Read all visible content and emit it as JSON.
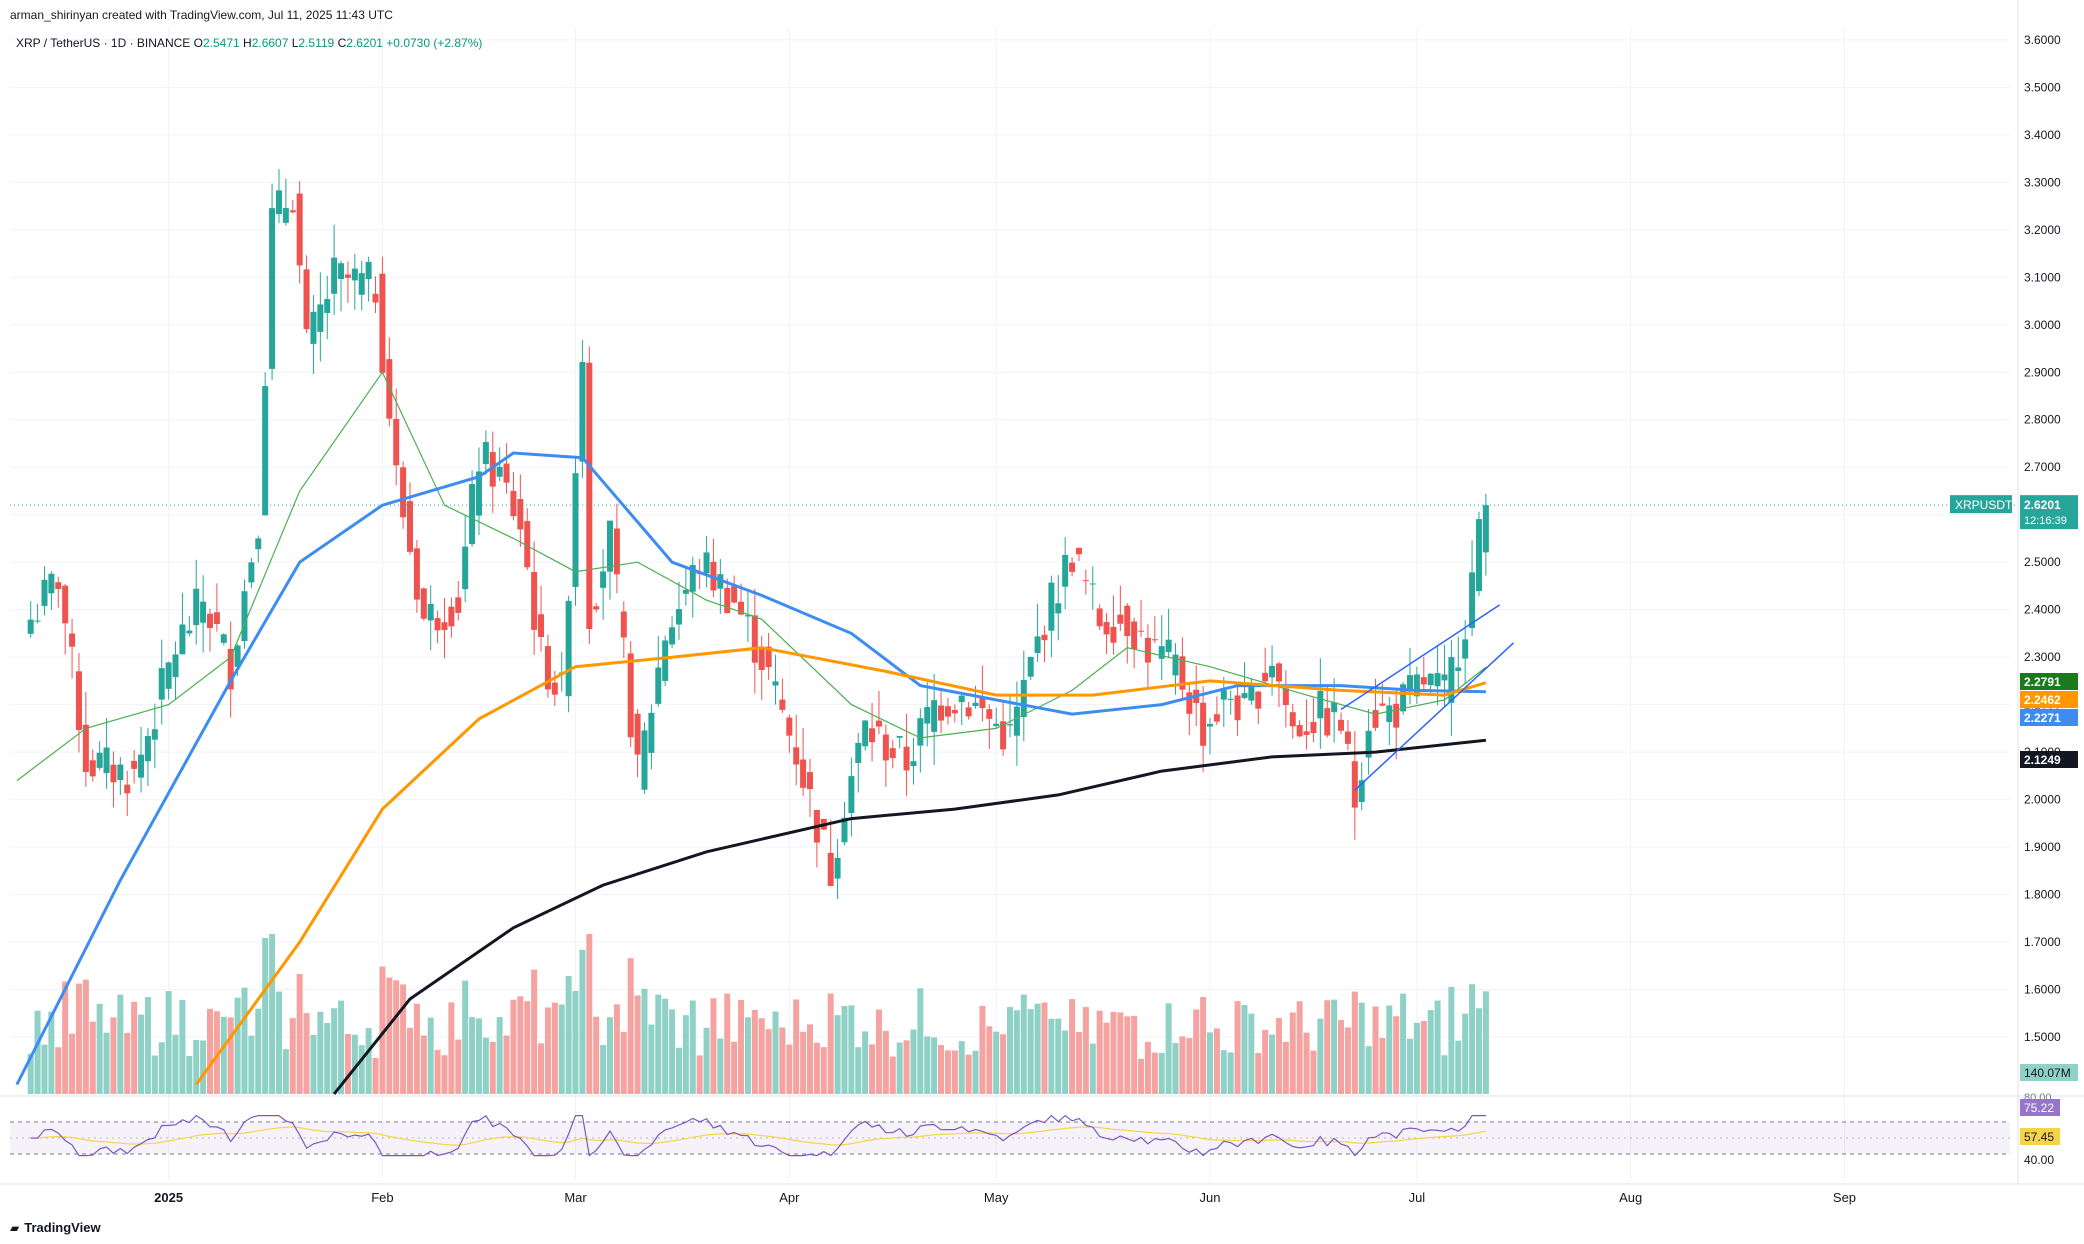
{
  "header": {
    "credit": "arman_shirinyan created with TradingView.com, Jul 11, 2025 11:43 UTC",
    "symbol": "XRP / TetherUS · 1D · BINANCE",
    "o_label": "O",
    "o": "2.5471",
    "h_label": "H",
    "h": "2.6607",
    "l_label": "L",
    "l": "2.5119",
    "c_label": "C",
    "c": "2.6201",
    "change": "+0.0730 (+2.87%)"
  },
  "footer": {
    "brand": "TradingView"
  },
  "colors": {
    "up": "#26a69a",
    "down": "#ef5350",
    "up_vol": "#8fd1c7",
    "down_vol": "#f5a3a1",
    "ma_green": "#4caf50",
    "ma_blue": "#3d8df0",
    "ma_orange": "#ff9800",
    "ma_black": "#131722",
    "rsi": "#7e57c2",
    "rsi_ma": "#f5d547",
    "channel": "#2962ff"
  },
  "chart_data": {
    "type": "candlestick",
    "price_axis": {
      "ticks": [
        "3.6000",
        "3.5000",
        "3.4000",
        "3.3000",
        "3.2000",
        "3.1000",
        "3.0000",
        "2.9000",
        "2.8000",
        "2.7000",
        "2.6000",
        "2.5000",
        "2.4000",
        "2.3000",
        "2.2000",
        "2.1000",
        "2.0000",
        "1.9000",
        "1.8000",
        "1.7000",
        "1.6000",
        "1.5000"
      ],
      "ylim": [
        1.38,
        3.625
      ]
    },
    "time_axis": [
      "2025",
      "Feb",
      "Mar",
      "Apr",
      "May",
      "Jun",
      "Jul",
      "Aug",
      "Sep"
    ],
    "price_labels": [
      {
        "text": "XRPUSDT",
        "value": "2.6201",
        "sub": "12:16:39",
        "y": 2.6201,
        "color": "#26a69a"
      },
      {
        "text": "",
        "value": "2.2791",
        "y": 2.2791,
        "color": "#1b7a1b"
      },
      {
        "text": "",
        "value": "2.2462",
        "y": 2.2462,
        "color": "#ff9800"
      },
      {
        "text": "",
        "value": "2.2271",
        "y": 2.2271,
        "color": "#3d8df0"
      },
      {
        "text": "",
        "value": "2.1249",
        "y": 2.1249,
        "color": "#131722"
      }
    ],
    "volume_label": "140.07M",
    "rsi_labels": [
      {
        "value": "75.22",
        "color": "#9575cd"
      },
      {
        "value": "57.45",
        "color": "#f5d547"
      }
    ],
    "rsi_axis": [
      "80.00",
      "40.00"
    ],
    "anchors": [
      {
        "date": "2024-12-12",
        "close": 2.38
      },
      {
        "date": "2024-12-16",
        "close": 2.47
      },
      {
        "date": "2024-12-20",
        "close": 2.08
      },
      {
        "date": "2024-12-27",
        "close": 2.05
      },
      {
        "date": "2025-01-02",
        "close": 2.32
      },
      {
        "date": "2025-01-06",
        "close": 2.42
      },
      {
        "date": "2025-01-10",
        "close": 2.28
      },
      {
        "date": "2025-01-14",
        "close": 2.6
      },
      {
        "date": "2025-01-16",
        "close": 3.22
      },
      {
        "date": "2025-01-19",
        "close": 3.28
      },
      {
        "date": "2025-01-21",
        "close": 2.95
      },
      {
        "date": "2025-01-25",
        "close": 3.1
      },
      {
        "date": "2025-01-31",
        "close": 3.08
      },
      {
        "date": "2025-02-03",
        "close": 2.68
      },
      {
        "date": "2025-02-07",
        "close": 2.38
      },
      {
        "date": "2025-02-12",
        "close": 2.42
      },
      {
        "date": "2025-02-15",
        "close": 2.72
      },
      {
        "date": "2025-02-18",
        "close": 2.68
      },
      {
        "date": "2025-02-21",
        "close": 2.58
      },
      {
        "date": "2025-02-24",
        "close": 2.3
      },
      {
        "date": "2025-02-27",
        "close": 2.22
      },
      {
        "date": "2025-03-02",
        "close": 2.95
      },
      {
        "date": "2025-03-03",
        "close": 2.4
      },
      {
        "date": "2025-03-06",
        "close": 2.55
      },
      {
        "date": "2025-03-10",
        "close": 2.05
      },
      {
        "date": "2025-03-14",
        "close": 2.35
      },
      {
        "date": "2025-03-19",
        "close": 2.5
      },
      {
        "date": "2025-03-24",
        "close": 2.42
      },
      {
        "date": "2025-03-28",
        "close": 2.3
      },
      {
        "date": "2025-04-02",
        "close": 2.1
      },
      {
        "date": "2025-04-07",
        "close": 1.85
      },
      {
        "date": "2025-04-09",
        "close": 2.0
      },
      {
        "date": "2025-04-12",
        "close": 2.15
      },
      {
        "date": "2025-04-18",
        "close": 2.08
      },
      {
        "date": "2025-04-22",
        "close": 2.2
      },
      {
        "date": "2025-04-26",
        "close": 2.22
      },
      {
        "date": "2025-04-30",
        "close": 2.17
      },
      {
        "date": "2025-05-03",
        "close": 2.13
      },
      {
        "date": "2025-05-08",
        "close": 2.38
      },
      {
        "date": "2025-05-12",
        "close": 2.52
      },
      {
        "date": "2025-05-16",
        "close": 2.38
      },
      {
        "date": "2025-05-20",
        "close": 2.38
      },
      {
        "date": "2025-05-23",
        "close": 2.32
      },
      {
        "date": "2025-05-27",
        "close": 2.28
      },
      {
        "date": "2025-05-31",
        "close": 2.15
      },
      {
        "date": "2025-06-04",
        "close": 2.22
      },
      {
        "date": "2025-06-06",
        "close": 2.18
      },
      {
        "date": "2025-06-10",
        "close": 2.3
      },
      {
        "date": "2025-06-13",
        "close": 2.15
      },
      {
        "date": "2025-06-17",
        "close": 2.18
      },
      {
        "date": "2025-06-20",
        "close": 2.16
      },
      {
        "date": "2025-06-22",
        "close": 2.0
      },
      {
        "date": "2025-06-24",
        "close": 2.18
      },
      {
        "date": "2025-06-28",
        "close": 2.19
      },
      {
        "date": "2025-07-02",
        "close": 2.25
      },
      {
        "date": "2025-07-05",
        "close": 2.22
      },
      {
        "date": "2025-07-08",
        "close": 2.38
      },
      {
        "date": "2025-07-10",
        "close": 2.55
      },
      {
        "date": "2025-07-11",
        "close": 2.6201
      }
    ],
    "moving_averages": [
      {
        "color": "#4caf50",
        "points": [
          [
            "2024-12-10",
            2.04
          ],
          [
            "2024-12-20",
            2.15
          ],
          [
            "2025-01-01",
            2.2
          ],
          [
            "2025-01-10",
            2.3
          ],
          [
            "2025-01-20",
            2.65
          ],
          [
            "2025-02-01",
            2.9
          ],
          [
            "2025-02-10",
            2.62
          ],
          [
            "2025-02-20",
            2.55
          ],
          [
            "2025-03-01",
            2.48
          ],
          [
            "2025-03-10",
            2.5
          ],
          [
            "2025-03-20",
            2.42
          ],
          [
            "2025-03-28",
            2.38
          ],
          [
            "2025-04-10",
            2.2
          ],
          [
            "2025-04-20",
            2.13
          ],
          [
            "2025-05-01",
            2.15
          ],
          [
            "2025-05-12",
            2.23
          ],
          [
            "2025-05-20",
            2.32
          ],
          [
            "2025-06-01",
            2.28
          ],
          [
            "2025-06-15",
            2.22
          ],
          [
            "2025-06-25",
            2.18
          ],
          [
            "2025-07-05",
            2.21
          ],
          [
            "2025-07-11",
            2.2791
          ]
        ]
      },
      {
        "color": "#3d8df0",
        "points": [
          [
            "2024-12-10",
            1.4
          ],
          [
            "2024-12-25",
            1.83
          ],
          [
            "2025-01-10",
            2.25
          ],
          [
            "2025-01-20",
            2.5
          ],
          [
            "2025-02-01",
            2.62
          ],
          [
            "2025-02-15",
            2.68
          ],
          [
            "2025-02-20",
            2.73
          ],
          [
            "2025-03-02",
            2.72
          ],
          [
            "2025-03-15",
            2.5
          ],
          [
            "2025-03-28",
            2.43
          ],
          [
            "2025-04-10",
            2.35
          ],
          [
            "2025-04-20",
            2.24
          ],
          [
            "2025-05-01",
            2.21
          ],
          [
            "2025-05-12",
            2.18
          ],
          [
            "2025-05-25",
            2.2
          ],
          [
            "2025-06-05",
            2.24
          ],
          [
            "2025-06-20",
            2.24
          ],
          [
            "2025-07-01",
            2.23
          ],
          [
            "2025-07-11",
            2.2271
          ]
        ]
      },
      {
        "color": "#ff9800",
        "points": [
          [
            "2025-01-05",
            1.4
          ],
          [
            "2025-01-20",
            1.7
          ],
          [
            "2025-02-01",
            1.98
          ],
          [
            "2025-02-15",
            2.17
          ],
          [
            "2025-03-01",
            2.28
          ],
          [
            "2025-03-15",
            2.3
          ],
          [
            "2025-03-28",
            2.32
          ],
          [
            "2025-04-15",
            2.27
          ],
          [
            "2025-05-01",
            2.22
          ],
          [
            "2025-05-15",
            2.22
          ],
          [
            "2025-06-01",
            2.25
          ],
          [
            "2025-06-20",
            2.23
          ],
          [
            "2025-07-05",
            2.22
          ],
          [
            "2025-07-11",
            2.2462
          ]
        ]
      },
      {
        "color": "#131722",
        "points": [
          [
            "2025-01-25",
            1.38
          ],
          [
            "2025-02-05",
            1.58
          ],
          [
            "2025-02-20",
            1.73
          ],
          [
            "2025-03-05",
            1.82
          ],
          [
            "2025-03-20",
            1.89
          ],
          [
            "2025-04-10",
            1.96
          ],
          [
            "2025-04-25",
            1.98
          ],
          [
            "2025-05-10",
            2.01
          ],
          [
            "2025-05-25",
            2.06
          ],
          [
            "2025-06-10",
            2.09
          ],
          [
            "2025-06-25",
            2.1
          ],
          [
            "2025-07-11",
            2.1249
          ]
        ]
      }
    ],
    "channel_lines": [
      {
        "from": [
          "2025-06-20",
          2.19
        ],
        "to": [
          "2025-07-13",
          2.41
        ]
      },
      {
        "from": [
          "2025-06-22",
          2.02
        ],
        "to": [
          "2025-07-15",
          2.33
        ]
      }
    ]
  }
}
